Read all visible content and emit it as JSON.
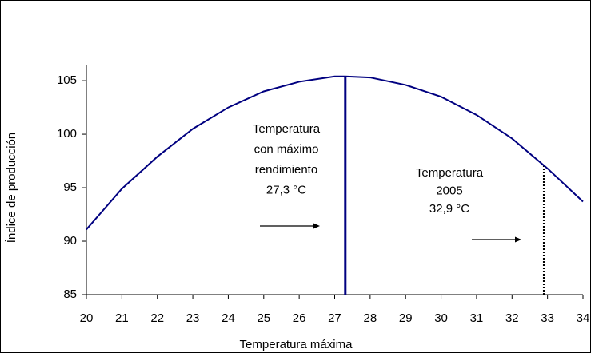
{
  "chart_data": {
    "type": "line",
    "x_label": "Temperatura máxima",
    "y_label": "Índice de producción",
    "x": [
      20,
      21,
      22,
      23,
      24,
      25,
      26,
      27,
      27.3,
      28,
      29,
      30,
      31,
      32,
      33,
      34
    ],
    "series": [
      {
        "color": "#000080",
        "values": [
          91.1,
          94.9,
          97.9,
          100.5,
          102.5,
          104.0,
          104.9,
          105.4,
          105.4,
          105.3,
          104.6,
          103.5,
          101.8,
          99.6,
          96.8,
          93.7
        ]
      }
    ],
    "xlim": [
      20,
      34
    ],
    "xticks": [
      20,
      21,
      22,
      23,
      24,
      25,
      26,
      27,
      28,
      29,
      30,
      31,
      32,
      33,
      34
    ],
    "ylim": [
      85,
      106.5
    ],
    "yticks": [
      85,
      90,
      95,
      100,
      105
    ],
    "vlines": [
      {
        "x": 27.3,
        "ymax": 105.4,
        "style": "solid"
      },
      {
        "x": 32.9,
        "ymax": 97.1,
        "style": "dotted"
      }
    ],
    "annotations": [
      {
        "lines": [
          "Temperatura",
          "con máximo",
          "rendimiento",
          "27,3 °C"
        ]
      },
      {
        "lines": [
          "Temperatura",
          "2005",
          "32,9 °C"
        ]
      }
    ]
  }
}
